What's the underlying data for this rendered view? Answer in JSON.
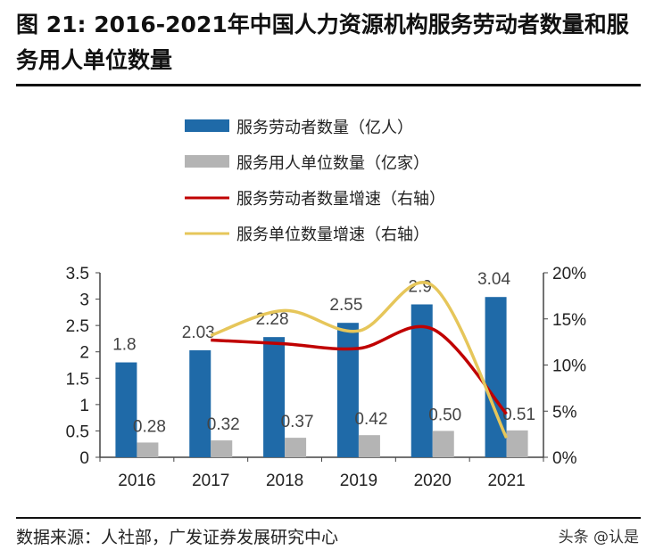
{
  "title": "图 21: 2016-2021年中国人力资源机构服务劳动者数量和服务用人单位数量",
  "source": "数据来源：人社部，广发证券发展研究中心",
  "watermark": "头条 @认是",
  "chart_data": {
    "type": "bar+line",
    "categories": [
      "2016",
      "2017",
      "2018",
      "2019",
      "2020",
      "2021"
    ],
    "left_axis": {
      "ylim": [
        0,
        3.5
      ],
      "ticks": [
        "0",
        "0.5",
        "1",
        "1.5",
        "2",
        "2.5",
        "3",
        "3.5"
      ]
    },
    "right_axis": {
      "ylim": [
        0,
        20
      ],
      "ticks": [
        "0%",
        "5%",
        "10%",
        "15%",
        "20%"
      ]
    },
    "legend_position": "top",
    "grid": false,
    "series": [
      {
        "name": "服务劳动者数量（亿人）",
        "type": "bar",
        "axis": "left",
        "color": "#1F6AA8",
        "values": [
          1.8,
          2.03,
          2.28,
          2.55,
          2.9,
          3.04
        ],
        "labels": [
          "1.8",
          "2.03",
          "2.28",
          "2.55",
          "2.9",
          "3.04"
        ]
      },
      {
        "name": "服务用人单位数量（亿家）",
        "type": "bar",
        "axis": "left",
        "color": "#B4B4B4",
        "values": [
          0.28,
          0.32,
          0.37,
          0.42,
          0.5,
          0.51
        ],
        "labels": [
          "0.28",
          "0.32",
          "0.37",
          "0.42",
          "0.50",
          "0.51"
        ]
      },
      {
        "name": "服务劳动者数量增速（右轴）",
        "type": "line",
        "axis": "right",
        "color": "#C00000",
        "values": [
          null,
          12.7,
          12.3,
          11.8,
          13.9,
          4.7
        ]
      },
      {
        "name": "服务单位数量增速（右轴）",
        "type": "line",
        "axis": "right",
        "color": "#E6C65A",
        "values": [
          null,
          13.2,
          15.9,
          13.7,
          18.6,
          2.1
        ]
      }
    ]
  }
}
